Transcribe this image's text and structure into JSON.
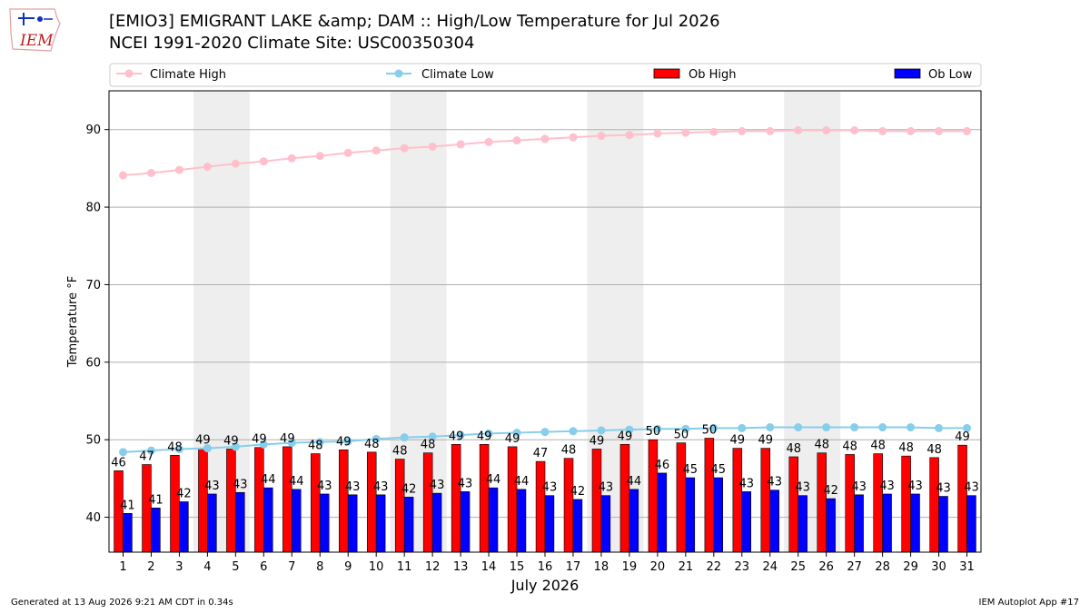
{
  "header": {
    "logo_text": "IEM",
    "title_line1": "[EMIO3] EMIGRANT LAKE &amp; DAM :: High/Low Temperature for Jul 2026",
    "title_line2": "NCEI 1991-2020 Climate Site: USC00350304"
  },
  "footer": {
    "generated": "Generated at 13 Aug 2026 9:21 AM CDT in 0.34s",
    "app": "IEM Autoplot App #17"
  },
  "colors": {
    "ob_high": "#ff0000",
    "ob_low": "#0000ff",
    "climate_high": "#ffc0cb",
    "climate_low": "#87ceeb",
    "weekend_band": "#eeeeee",
    "grid": "#b0b0b0"
  },
  "chart_data": {
    "type": "bar",
    "xlabel": "July 2026",
    "ylabel": "Temperature °F",
    "ylim": [
      35.5,
      95
    ],
    "yticks": [
      40,
      50,
      60,
      70,
      80,
      90
    ],
    "grid": "horizontal",
    "legend_placement": "top",
    "categories": [
      "1",
      "2",
      "3",
      "4",
      "5",
      "6",
      "7",
      "8",
      "9",
      "10",
      "11",
      "12",
      "13",
      "14",
      "15",
      "16",
      "17",
      "18",
      "19",
      "20",
      "21",
      "22",
      "23",
      "24",
      "25",
      "26",
      "27",
      "28",
      "29",
      "30",
      "31"
    ],
    "shaded_days": [
      [
        4,
        5
      ],
      [
        11,
        12
      ],
      [
        18,
        19
      ],
      [
        25,
        26
      ]
    ],
    "series": [
      {
        "name": "Climate High",
        "kind": "line",
        "values": [
          84.1,
          84.4,
          84.8,
          85.2,
          85.6,
          85.9,
          86.3,
          86.6,
          87.0,
          87.3,
          87.6,
          87.8,
          88.1,
          88.4,
          88.6,
          88.8,
          89.0,
          89.2,
          89.3,
          89.5,
          89.6,
          89.7,
          89.8,
          89.8,
          89.9,
          89.9,
          89.9,
          89.8,
          89.8,
          89.8,
          89.8
        ]
      },
      {
        "name": "Climate Low",
        "kind": "line",
        "values": [
          48.4,
          48.6,
          48.8,
          48.9,
          49.1,
          49.4,
          49.6,
          49.7,
          49.8,
          50.1,
          50.3,
          50.4,
          50.6,
          50.8,
          50.9,
          51.0,
          51.1,
          51.2,
          51.3,
          51.4,
          51.4,
          51.5,
          51.5,
          51.6,
          51.6,
          51.6,
          51.6,
          51.6,
          51.6,
          51.5,
          51.5
        ]
      },
      {
        "name": "Ob High",
        "kind": "bar",
        "values": [
          46,
          47,
          48,
          49,
          49,
          49,
          49,
          48,
          49,
          48,
          48,
          48,
          49,
          49,
          49,
          47,
          48,
          49,
          49,
          50,
          50,
          50,
          49,
          49,
          48,
          48,
          48,
          48,
          48,
          48,
          49
        ],
        "plotted": [
          46.0,
          46.8,
          48.0,
          48.9,
          48.8,
          49.0,
          49.1,
          48.2,
          48.7,
          48.4,
          47.5,
          48.3,
          49.4,
          49.4,
          49.1,
          47.2,
          47.6,
          48.8,
          49.4,
          50.0,
          49.6,
          50.2,
          48.9,
          48.9,
          47.8,
          48.3,
          48.1,
          48.2,
          47.9,
          47.7,
          49.3
        ]
      },
      {
        "name": "Ob Low",
        "kind": "bar",
        "values": [
          41,
          41,
          42,
          43,
          43,
          44,
          44,
          43,
          43,
          43,
          42,
          43,
          43,
          44,
          44,
          43,
          42,
          43,
          44,
          46,
          45,
          45,
          43,
          43,
          43,
          42,
          43,
          43,
          43,
          43,
          43
        ],
        "plotted": [
          40.5,
          41.2,
          42.0,
          43.0,
          43.2,
          43.8,
          43.6,
          43.0,
          42.9,
          42.9,
          42.6,
          43.1,
          43.3,
          43.8,
          43.6,
          42.8,
          42.3,
          42.8,
          43.6,
          45.7,
          45.1,
          45.1,
          43.3,
          43.5,
          42.8,
          42.4,
          42.9,
          43.0,
          43.0,
          42.7,
          42.8
        ]
      }
    ]
  }
}
